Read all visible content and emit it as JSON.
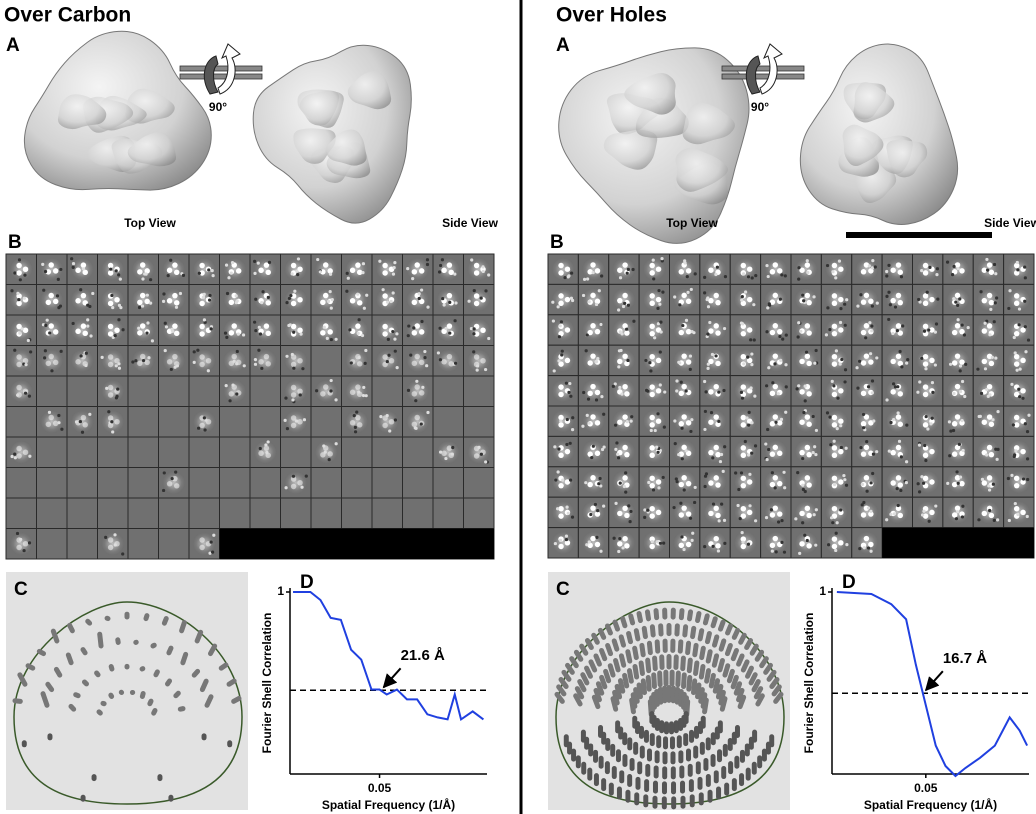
{
  "panels": [
    {
      "title": "Over Carbon",
      "panel_a": {
        "label": "A",
        "rotation": "90°",
        "views": [
          "Top View",
          "Side View"
        ]
      },
      "panel_b": {
        "label": "B"
      },
      "panel_c": {
        "label": "C"
      },
      "panel_d": {
        "label": "D",
        "chart_data": {
          "type": "line",
          "xlabel": "Spatial Frequency (1/Å)",
          "ylabel": "Fourier Shell Correlation",
          "x": [
            0.0017,
            0.0114,
            0.017,
            0.0227,
            0.0284,
            0.0341,
            0.0398,
            0.0455,
            0.05,
            0.054,
            0.0597,
            0.0653,
            0.071,
            0.0767,
            0.0824,
            0.088,
            0.092,
            0.0955,
            0.102,
            0.108
          ],
          "values": [
            1.0,
            1.0,
            0.956,
            0.858,
            0.847,
            0.683,
            0.628,
            0.464,
            0.464,
            0.437,
            0.464,
            0.41,
            0.41,
            0.328,
            0.311,
            0.3,
            0.437,
            0.3,
            0.344,
            0.3
          ],
          "color": "#2040e0",
          "xlim": [
            0,
            0.11
          ],
          "ylim": [
            0,
            1
          ],
          "xticks": [
            0.05
          ],
          "yticks": [
            1
          ],
          "threshold": 0.46,
          "annotation": "21.6 Å"
        }
      }
    },
    {
      "title": "Over Holes",
      "panel_a": {
        "label": "A",
        "rotation": "90°",
        "views": [
          "Top View",
          "Side View"
        ]
      },
      "panel_b": {
        "label": "B"
      },
      "panel_c": {
        "label": "C"
      },
      "panel_d": {
        "label": "D",
        "chart_data": {
          "type": "line",
          "xlabel": "Spatial Frequency (1/Å)",
          "ylabel": "Fourier Shell Correlation",
          "x": [
            0.0026,
            0.021,
            0.0316,
            0.0395,
            0.0447,
            0.05,
            0.0553,
            0.0605,
            0.0658,
            0.0711,
            0.0789,
            0.0868,
            0.0947,
            0.1,
            0.104
          ],
          "values": [
            1.0,
            0.989,
            0.933,
            0.85,
            0.6,
            0.378,
            0.156,
            0.044,
            -0.011,
            0.033,
            0.089,
            0.156,
            0.311,
            0.239,
            0.156
          ],
          "color": "#2040e0",
          "xlim": [
            0,
            0.105
          ],
          "ylim": [
            0,
            1
          ],
          "xticks": [
            0.05
          ],
          "yticks": [
            1
          ],
          "threshold": 0.444,
          "annotation": "16.7 Å"
        }
      }
    }
  ]
}
